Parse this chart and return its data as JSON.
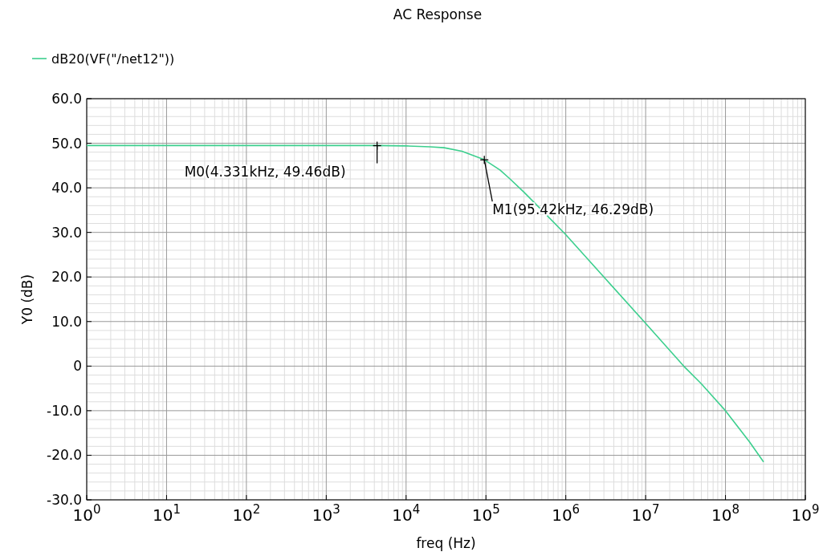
{
  "chart_data": {
    "type": "line",
    "title": "AC Response",
    "xlabel": "freq (Hz)",
    "ylabel": "Y0 (dB)",
    "log": "x",
    "grid": true,
    "legend": "top left",
    "marker": "none",
    "line_style": "solid",
    "xlim": [
      1,
      1000000000
    ],
    "xticks": [
      {
        "value": 1,
        "label": "10$^{0}$"
      },
      {
        "value": 10,
        "label": "10$^{1}$"
      },
      {
        "value": 100,
        "label": "10$^{2}$"
      },
      {
        "value": 1000,
        "label": "10$^{3}$"
      },
      {
        "value": 10000,
        "label": "10$^{4}$"
      },
      {
        "value": 100000,
        "label": "10$^{5}$"
      },
      {
        "value": 1000000,
        "label": "10$^{6}$"
      },
      {
        "value": 10000000,
        "label": "10$^{7}$"
      },
      {
        "value": 100000000,
        "label": "10$^{8}$"
      },
      {
        "value": 1000000000,
        "label": "10$^{9}$"
      }
    ],
    "ylim": [
      -30,
      60
    ],
    "yticks": [
      {
        "value": -30,
        "label": "-30.0"
      },
      {
        "value": -20,
        "label": "-20.0"
      },
      {
        "value": -10,
        "label": "-10.0"
      },
      0,
      {
        "value": 10,
        "label": "10.0"
      },
      {
        "value": 20,
        "label": "20.0"
      },
      {
        "value": 30,
        "label": "30.0"
      },
      {
        "value": 40,
        "label": "40.0"
      },
      {
        "value": 50,
        "label": "50.0"
      },
      {
        "value": 60,
        "label": "60.0"
      }
    ],
    "series": [
      {
        "name": "dB20(VF(\"/net12\"))",
        "color": "#3ccf8e",
        "x": [
          1,
          10,
          100,
          1000,
          4331,
          10000,
          20000,
          30000,
          50000,
          95420,
          150000,
          200000,
          300000,
          500000,
          1000000,
          3000000,
          10000000,
          30000000,
          50000000,
          100000000,
          200000000,
          300000000
        ],
        "values": [
          49.5,
          49.5,
          49.5,
          49.5,
          49.5,
          49.4,
          49.2,
          49,
          48.2,
          46.3,
          44,
          42,
          39,
          35,
          29.5,
          20,
          9.6,
          0,
          -4,
          -10,
          -17,
          -21.5
        ]
      }
    ],
    "annotations": [
      {
        "text": "M0(4.331kHz, 49.46dB)",
        "x": 4331,
        "y": 49.46
      },
      {
        "text": "M1(95.42kHz, 46.29dB)",
        "x": 95420,
        "y": 46.29
      }
    ]
  }
}
